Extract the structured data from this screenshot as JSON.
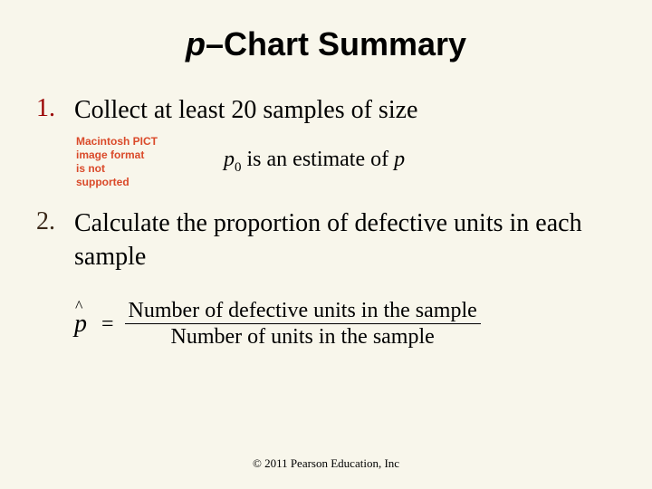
{
  "colors": {
    "background": "#f8f6eb",
    "step1_number": "#990000",
    "step2_number": "#3a2818",
    "pict_text": "#da4a2a"
  },
  "title": {
    "p_letter": "p",
    "rest": "–Chart Summary",
    "fontsize": 36
  },
  "step1": {
    "number": "1.",
    "text": "Collect at least 20 samples of size",
    "fontsize": 28
  },
  "pict": {
    "line1": "Macintosh PICT",
    "line2": "image format",
    "line3": "is not",
    "line4": "supported"
  },
  "estimate": {
    "p_var": "p",
    "zero": "0",
    "mid": " is an estimate of ",
    "p_var2": "p",
    "fontsize": 24
  },
  "step2": {
    "number": "2.",
    "text": "Calculate the proportion of defective units in each sample",
    "fontsize": 28
  },
  "formula": {
    "p_letter": "p",
    "caret": "^",
    "equals": "=",
    "numerator": "Number of defective units in the sample",
    "denominator": "Number of units in the sample",
    "fontsize": 24
  },
  "copyright": "© 2011 Pearson Education, Inc"
}
